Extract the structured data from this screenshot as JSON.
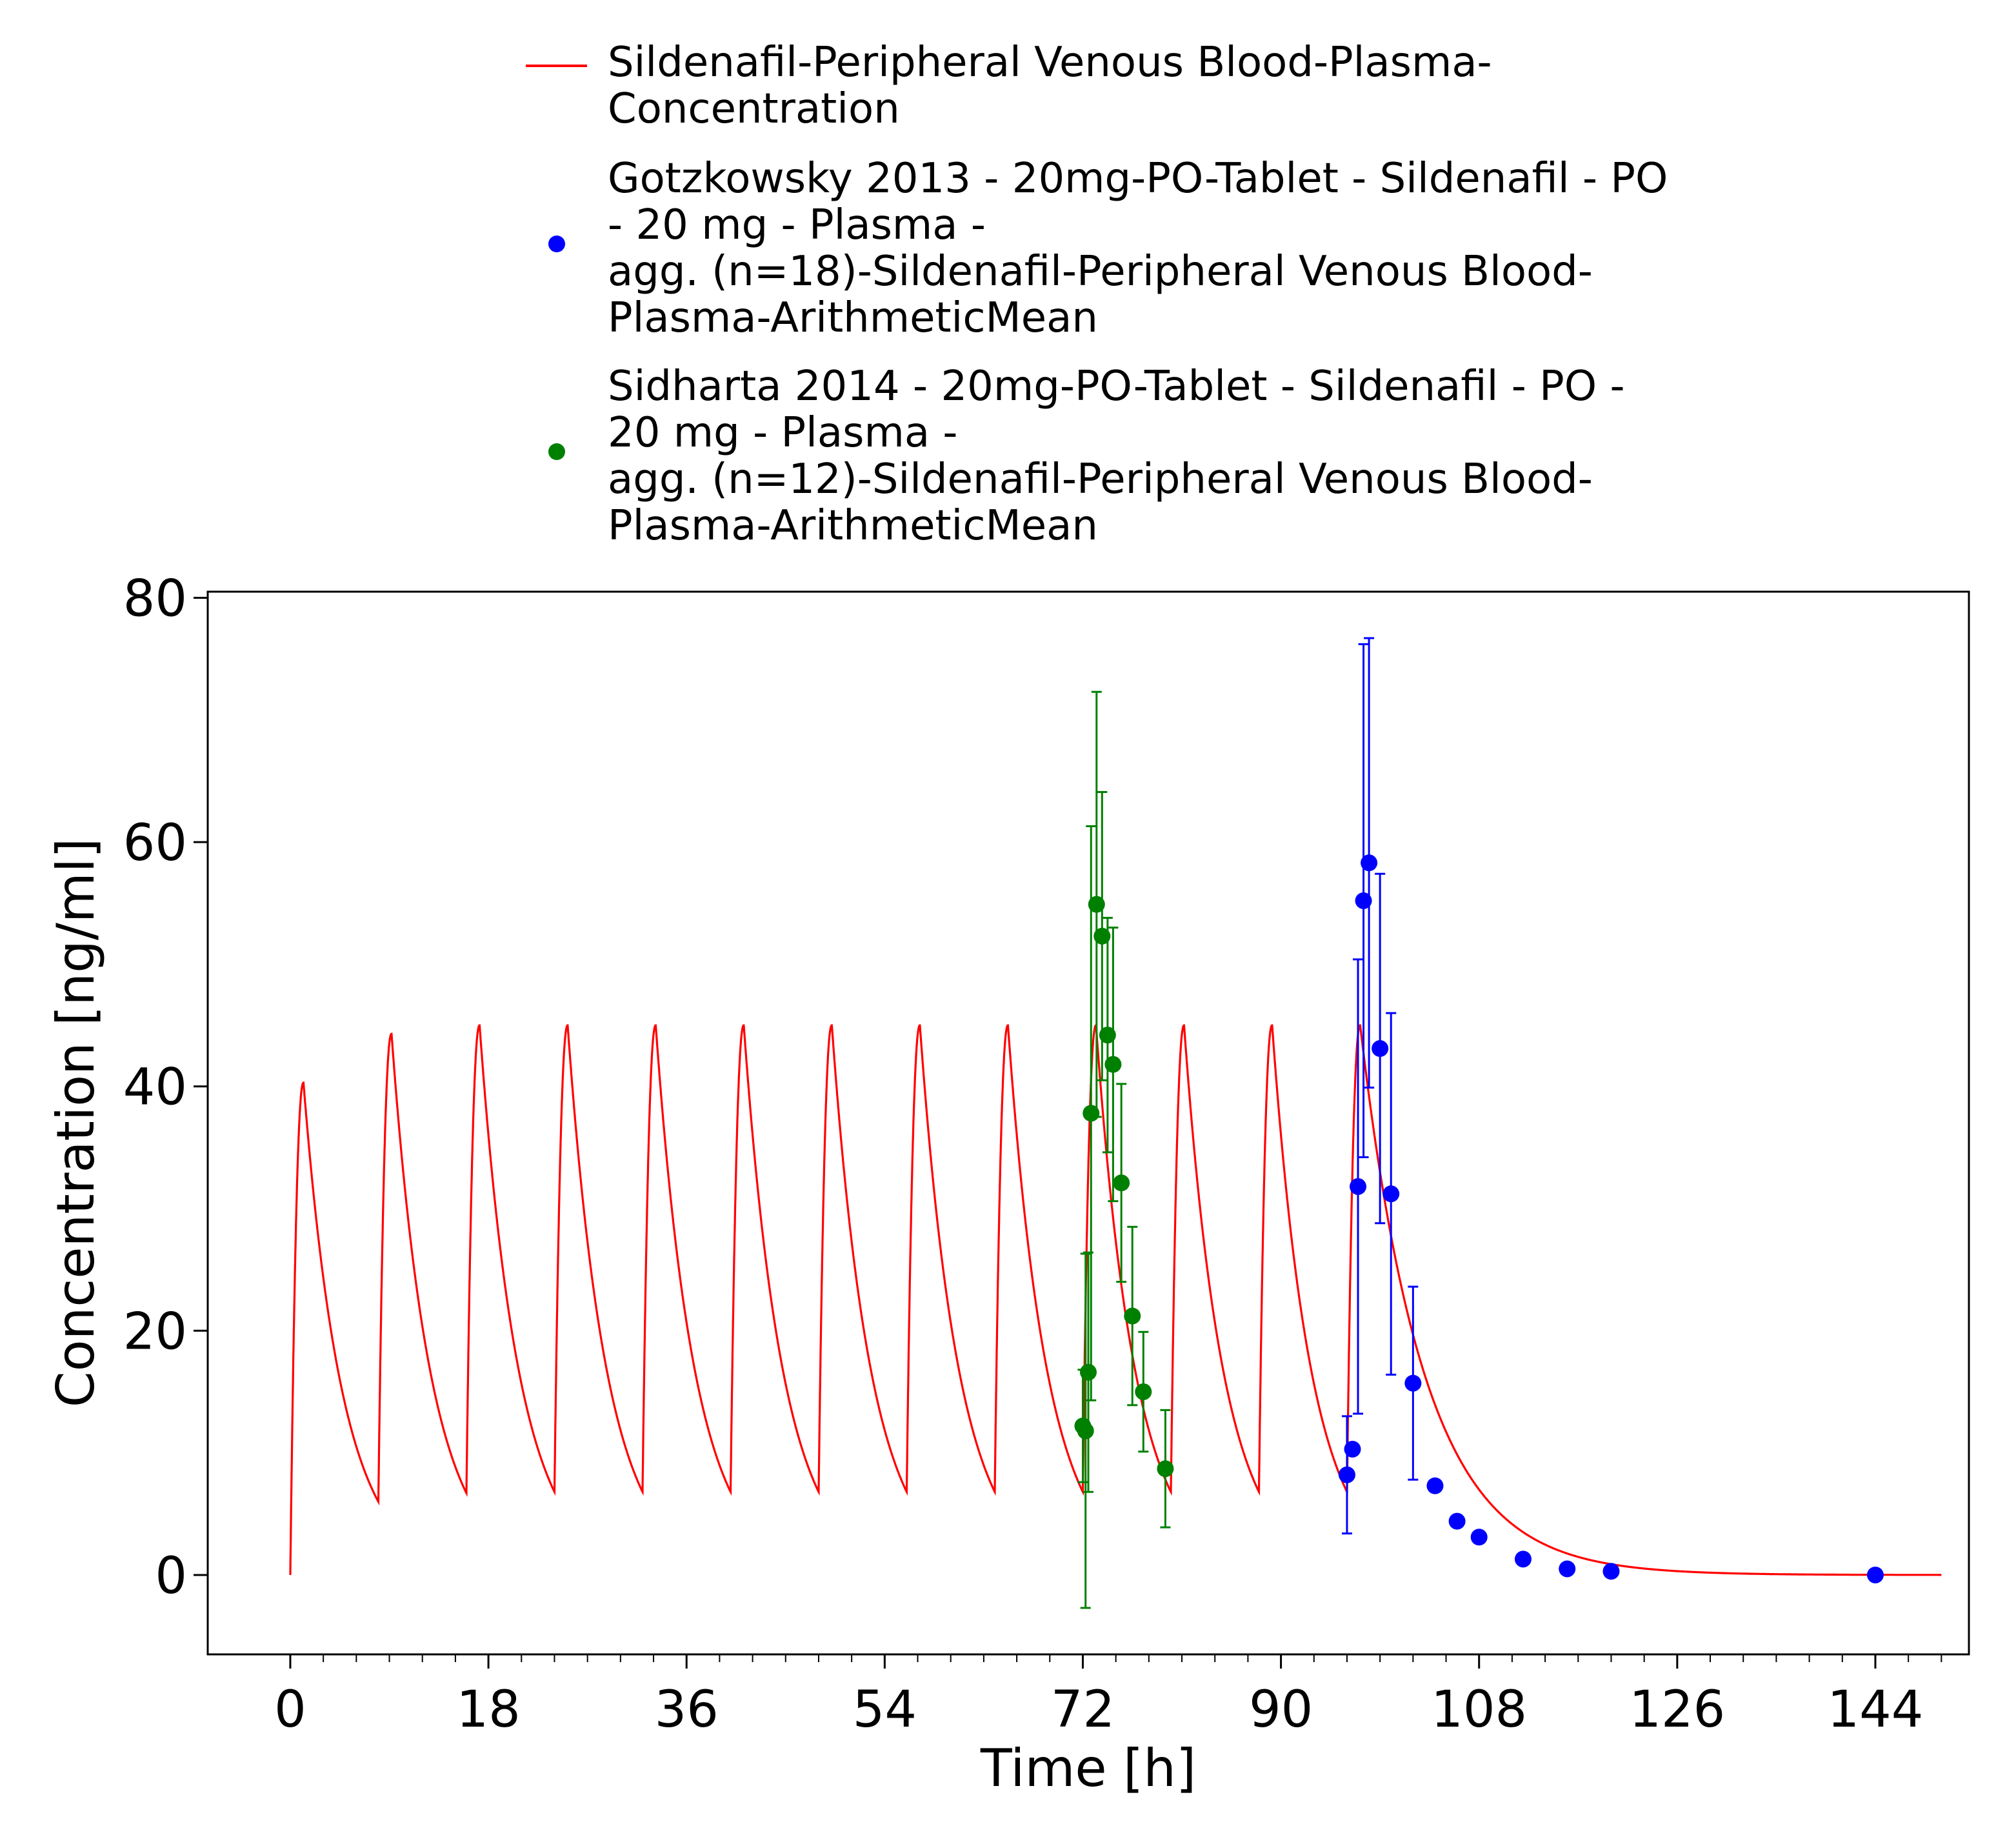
{
  "colors": {
    "simulation": "#ff0000",
    "gotzkowsky": "#0000ff",
    "sidharta": "#008000",
    "axes": "#000000",
    "background": "#ffffff"
  },
  "legend": {
    "placement": "top",
    "entries": [
      {
        "marker": "line",
        "color": "#ff0000",
        "lines": [
          "Sildenafil-Peripheral Venous Blood-Plasma-",
          "Concentration"
        ]
      },
      {
        "marker": "dot",
        "color": "#0000ff",
        "lines": [
          "Gotzkowsky 2013 - 20mg-PO-Tablet - Sildenafil - PO",
          "- 20 mg - Plasma -",
          "agg. (n=18)-Sildenafil-Peripheral Venous Blood-",
          "Plasma-ArithmeticMean"
        ]
      },
      {
        "marker": "dot",
        "color": "#008000",
        "lines": [
          "Sidharta 2014 - 20mg-PO-Tablet - Sildenafil - PO -",
          "20 mg - Plasma -",
          "agg. (n=12)-Sildenafil-Peripheral Venous Blood-",
          "Plasma-ArithmeticMean"
        ]
      }
    ]
  },
  "chart_data": {
    "type": "line",
    "title": "",
    "xlabel": "Time [h]",
    "ylabel": "Concentration [ng/ml]",
    "xlim": [
      -7.5,
      152.5
    ],
    "ylim": [
      -6.5,
      80.5
    ],
    "xticks": [
      0,
      18,
      36,
      54,
      72,
      90,
      108,
      126,
      144
    ],
    "yticks": [
      0,
      20,
      40,
      60,
      80
    ],
    "grid": false,
    "legend_position": "top",
    "simulation": {
      "name": "Sildenafil-Peripheral Venous Blood-Plasma-Concentration",
      "style": "line",
      "dosing_times_h": [
        0,
        8,
        16,
        24,
        32,
        40,
        48,
        56,
        64,
        72,
        80,
        88,
        96
      ],
      "peak_concentrations": [
        40.3,
        44.3,
        45.0,
        45.0,
        45.0,
        45.0,
        45.0,
        45.0,
        45.0,
        45.0,
        45.0,
        45.0,
        45.0
      ],
      "trough_concentrations": [
        6.0,
        6.7,
        6.8,
        6.8,
        6.8,
        6.8,
        6.8,
        6.8,
        6.8,
        6.8,
        6.8,
        6.8
      ],
      "end_time_h": 150
    },
    "series": [
      {
        "name": "Gotzkowsky 2013 - 20mg-PO-Tablet - Sildenafil - PO - 20 mg - Plasma - agg. (n=18)-Sildenafil-Peripheral Venous Blood-Plasma-ArithmeticMean",
        "style": "scatter",
        "x": [
          96.0,
          96.5,
          97.0,
          97.5,
          98.0,
          99.0,
          100.0,
          102.0,
          104.0,
          106.0,
          108.0,
          112.0,
          116.0,
          120.0,
          144.0
        ],
        "y": [
          8.2,
          10.3,
          31.8,
          55.2,
          58.3,
          43.1,
          31.2,
          15.7,
          7.3,
          4.4,
          3.1,
          1.3,
          0.5,
          0.3,
          0.0
        ],
        "yerr": [
          4.8,
          0,
          18.6,
          21.0,
          18.4,
          14.3,
          14.8,
          7.9,
          0,
          0,
          0,
          0,
          0,
          0,
          0
        ]
      },
      {
        "name": "Sidharta 2014 - 20mg-PO-Tablet - Sildenafil - PO - 20 mg - Plasma - agg. (n=12)-Sildenafil-Peripheral Venous Blood-Plasma-ArithmeticMean",
        "style": "scatter",
        "x": [
          72.0,
          72.25,
          72.5,
          72.75,
          73.25,
          73.75,
          74.25,
          74.75,
          75.5,
          76.5,
          77.5,
          79.5
        ],
        "y": [
          12.2,
          11.8,
          16.6,
          37.8,
          54.9,
          52.3,
          44.2,
          41.8,
          32.1,
          21.2,
          15.0,
          8.7
        ],
        "yerr": [
          4.6,
          14.5,
          9.8,
          23.5,
          17.4,
          11.8,
          9.6,
          11.2,
          8.1,
          7.3,
          4.9,
          4.8
        ]
      }
    ]
  }
}
